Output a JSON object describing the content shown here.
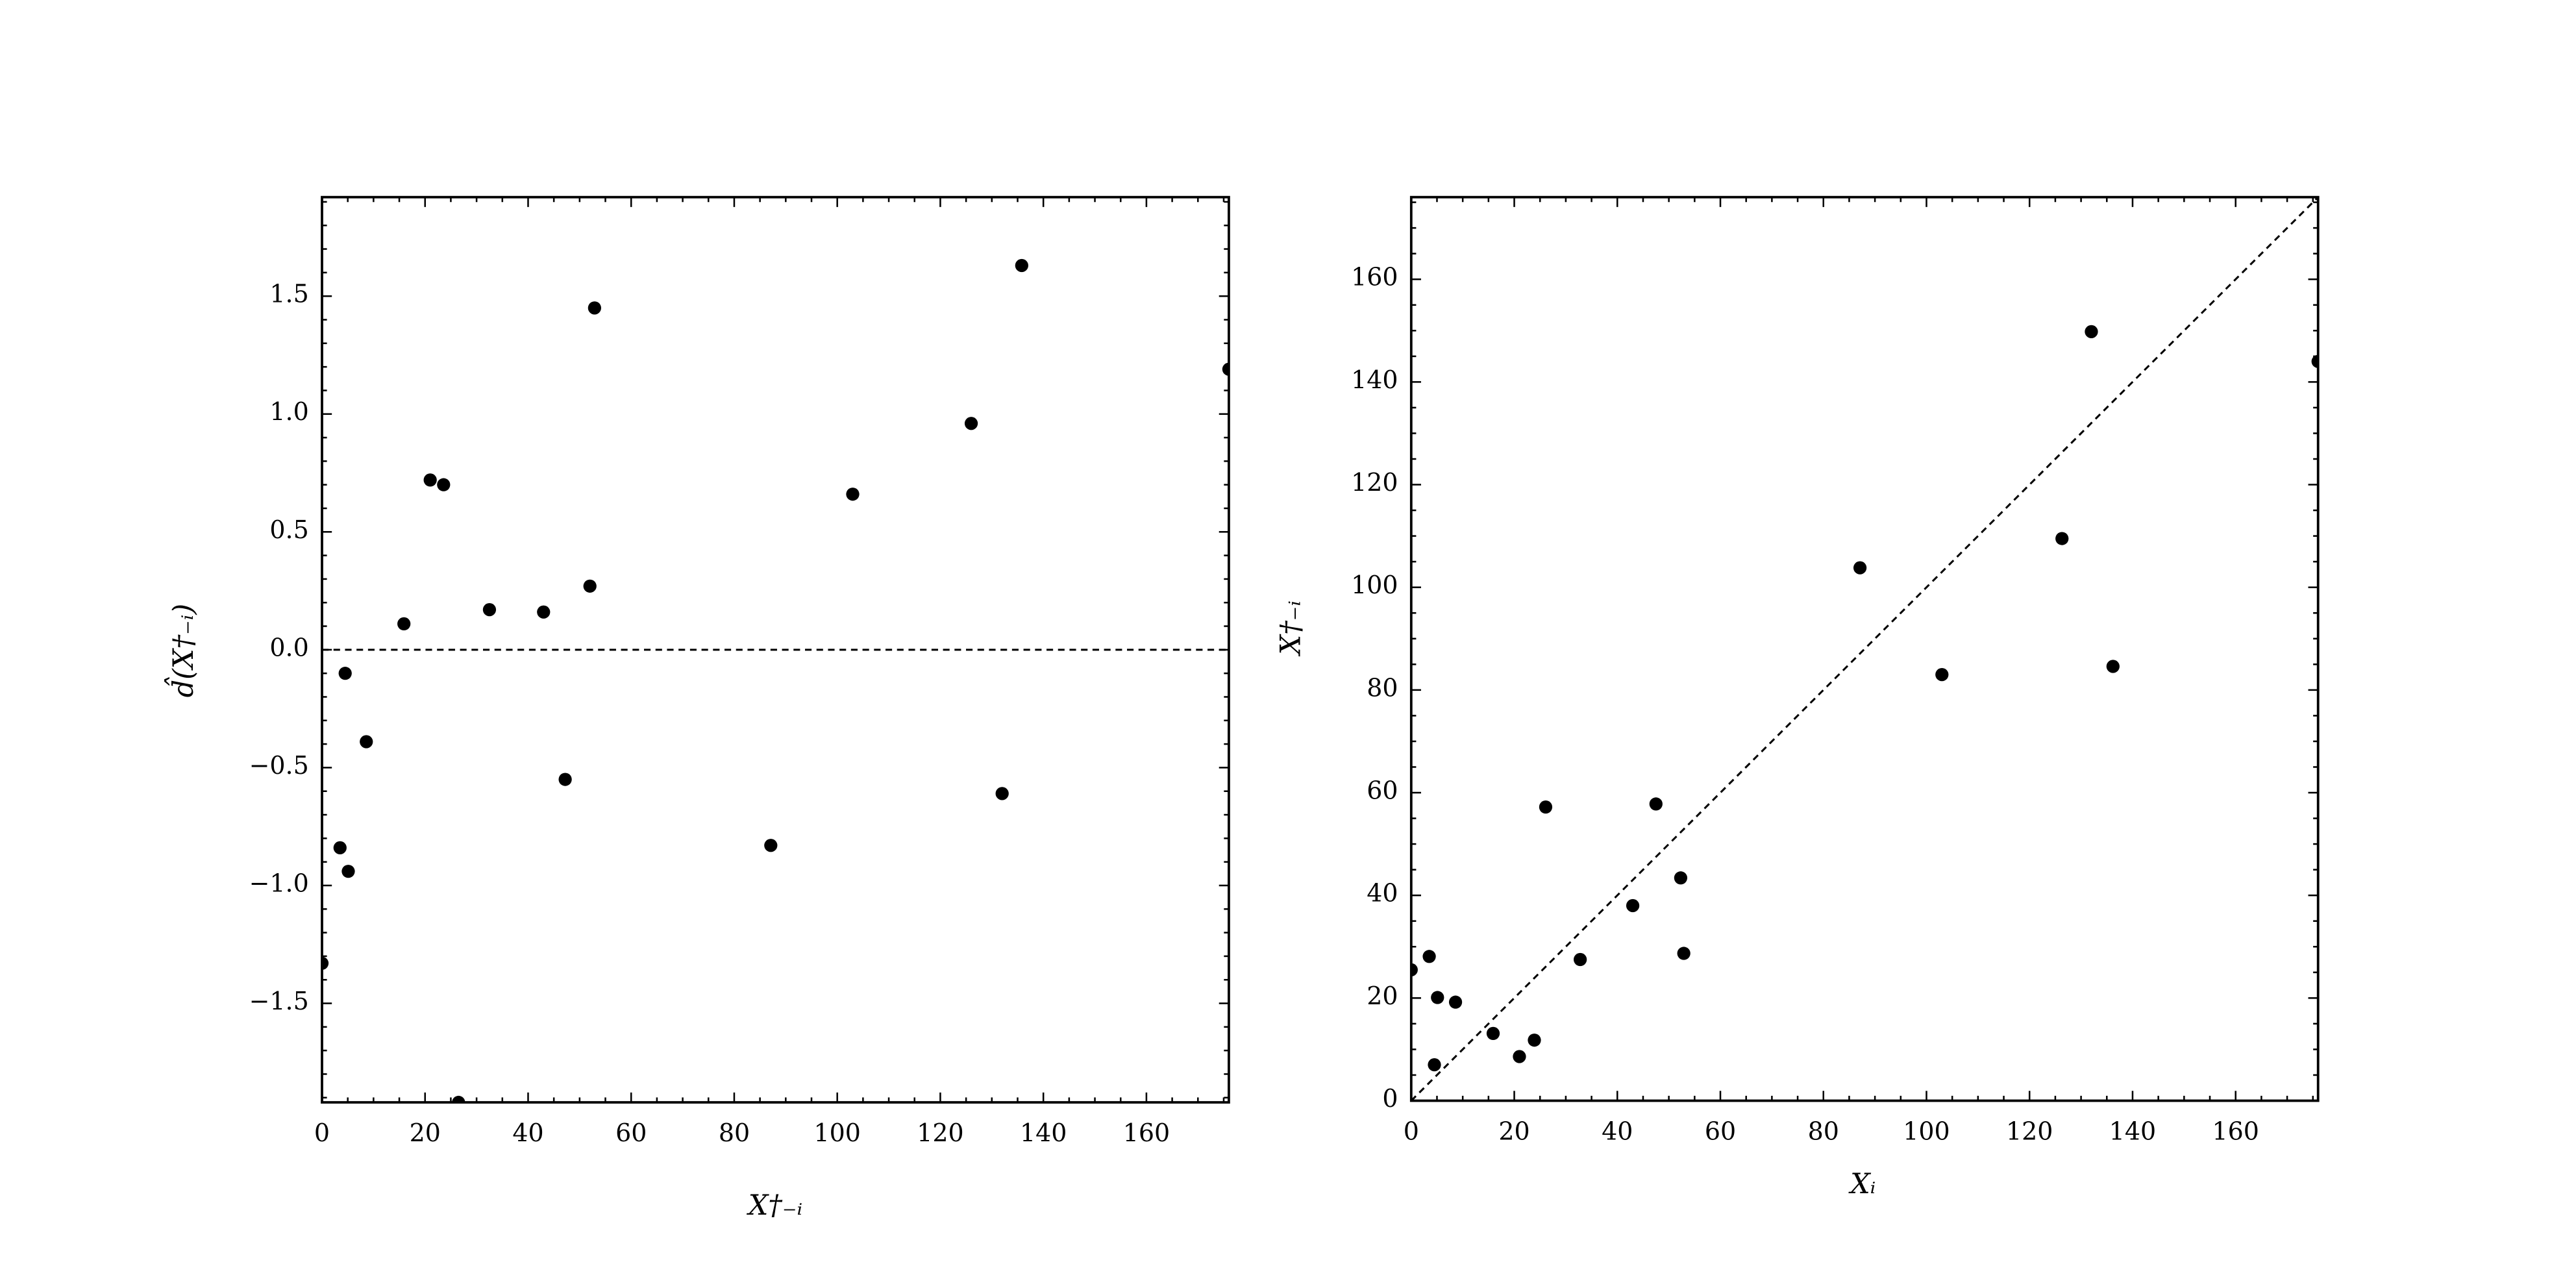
{
  "chart_data": [
    {
      "type": "scatter",
      "color": "#000000",
      "x_label": "X†₋ᵢ",
      "y_label": "d̂(X†₋ᵢ)",
      "x": [
        0,
        3.5,
        4.5,
        5.1,
        8.6,
        15.9,
        21.0,
        23.6,
        26.5,
        32.5,
        43.0,
        47.2,
        52.0,
        52.9,
        87.1,
        103.0,
        126.0,
        132.0,
        135.8,
        176
      ],
      "values": [
        -1.33,
        -0.84,
        -0.1,
        -0.94,
        -0.39,
        0.11,
        0.72,
        0.7,
        -1.92,
        0.17,
        0.16,
        -0.55,
        0.27,
        1.45,
        -0.83,
        0.66,
        0.96,
        -0.61,
        1.63,
        1.19
      ],
      "xlim": [
        0,
        176
      ],
      "ylim": [
        -1.92,
        1.92
      ],
      "xticks": [
        0,
        20,
        40,
        60,
        80,
        100,
        120,
        140,
        160
      ],
      "yticks": [
        {
          "value": -1.5,
          "label": "−1.5"
        },
        {
          "value": -1.0,
          "label": "−1.0"
        },
        {
          "value": -0.5,
          "label": "−0.5"
        },
        {
          "value": 0,
          "label": "0.0"
        },
        {
          "value": 0.5,
          "label": "0.5"
        },
        {
          "value": 1.0,
          "label": "1.0"
        },
        {
          "value": 1.5,
          "label": "1.5"
        }
      ],
      "reference_line": "horizontal-zero"
    },
    {
      "type": "scatter",
      "color": "#000000",
      "x_label": "Xᵢ",
      "y_label": "X†₋ᵢ",
      "x": [
        0,
        3.5,
        4.5,
        5.1,
        8.6,
        15.9,
        21.0,
        23.9,
        26.1,
        32.8,
        43.0,
        47.5,
        52.3,
        52.9,
        87.1,
        103.0,
        126.3,
        132.0,
        136.2,
        176
      ],
      "values": [
        25.5,
        28.1,
        7.0,
        20.1,
        19.2,
        13.1,
        8.6,
        11.8,
        57.2,
        27.5,
        38.0,
        57.8,
        43.4,
        28.7,
        103.8,
        83.0,
        109.5,
        149.8,
        84.6,
        144.0
      ],
      "xlim": [
        0,
        176
      ],
      "ylim": [
        0,
        176
      ],
      "xticks": [
        0,
        20,
        40,
        60,
        80,
        100,
        120,
        140,
        160
      ],
      "yticks": [
        0,
        20,
        40,
        60,
        80,
        100,
        120,
        140,
        160
      ],
      "reference_line": "identity"
    }
  ]
}
